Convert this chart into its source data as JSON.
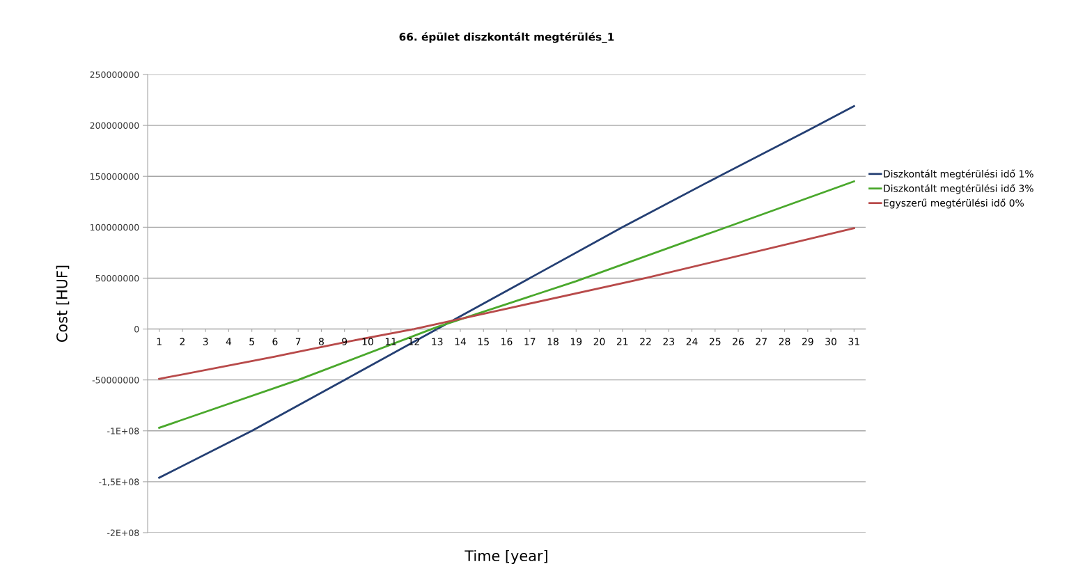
{
  "chart_data": {
    "type": "line",
    "title": "66. épület diszkontált megtérülés_1",
    "xlabel": "Time [year]",
    "ylabel": "Cost [HUF]",
    "xlim": [
      0.5,
      31.5
    ],
    "xticks": [
      1,
      2,
      3,
      4,
      5,
      6,
      7,
      8,
      9,
      10,
      11,
      12,
      13,
      14,
      15,
      16,
      17,
      18,
      19,
      20,
      21,
      22,
      23,
      24,
      25,
      26,
      27,
      28,
      29,
      30,
      31
    ],
    "ylim": [
      -200000000,
      250000000
    ],
    "yticks": [
      {
        "value": 250000000,
        "label": "250000000"
      },
      {
        "value": 200000000,
        "label": "200000000"
      },
      {
        "value": 150000000,
        "label": "150000000"
      },
      {
        "value": 100000000,
        "label": "100000000"
      },
      {
        "value": 50000000,
        "label": "50000000"
      },
      {
        "value": 0,
        "label": "0"
      },
      {
        "value": -50000000,
        "label": "-50000000"
      },
      {
        "value": -100000000,
        "label": "-1E+08"
      },
      {
        "value": -150000000,
        "label": "-1,5E+08"
      },
      {
        "value": -200000000,
        "label": "-2E+08"
      }
    ],
    "grid": "y",
    "legend": "right",
    "marker": "none",
    "line_style": "solid",
    "series": [
      {
        "name": "Diszkontált megtérülési idő 1%",
        "color": "#243f73",
        "x": [
          1,
          5,
          9,
          13,
          17,
          21,
          25,
          29,
          31
        ],
        "values": [
          -146000000,
          -100000000,
          -50000000,
          0,
          50000000,
          100000000,
          148000000,
          195000000,
          219000000
        ]
      },
      {
        "name": "Diszkontált megtérülési idő 3%",
        "color": "#4aa82c",
        "x": [
          1,
          7,
          13,
          19,
          25,
          31
        ],
        "values": [
          -97000000,
          -50000000,
          2000000,
          47000000,
          96000000,
          145000000
        ]
      },
      {
        "name": "Egyszerű megtérülési idő 0%",
        "color": "#b84a4a",
        "x": [
          1,
          6,
          9,
          12,
          16,
          22,
          31
        ],
        "values": [
          -49000000,
          -27000000,
          -13000000,
          0,
          20000000,
          50000000,
          99000000
        ]
      }
    ]
  }
}
